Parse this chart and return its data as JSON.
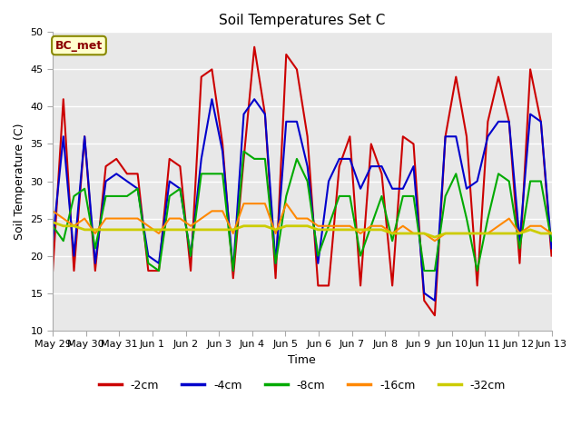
{
  "title": "Soil Temperatures Set C",
  "xlabel": "Time",
  "ylabel": "Soil Temperature (C)",
  "ylim": [
    10,
    50
  ],
  "yticks": [
    10,
    15,
    20,
    25,
    30,
    35,
    40,
    45,
    50
  ],
  "annotation": "BC_met",
  "bg_color": "#e8e8e8",
  "series": {
    "-2cm": {
      "color": "#cc0000",
      "linewidth": 1.5,
      "values": [
        18,
        41,
        18,
        36,
        18,
        32,
        33,
        31,
        31,
        18,
        18,
        33,
        32,
        18,
        44,
        45,
        35,
        17,
        33,
        48,
        39,
        17,
        47,
        45,
        36,
        16,
        16,
        32,
        36,
        16,
        35,
        31,
        16,
        36,
        35,
        14,
        12,
        36,
        44,
        36,
        16,
        38,
        44,
        38,
        19,
        45,
        38,
        20
      ]
    },
    "-4cm": {
      "color": "#0000cc",
      "linewidth": 1.5,
      "values": [
        22,
        36,
        20,
        36,
        19,
        30,
        31,
        30,
        29,
        20,
        19,
        30,
        29,
        20,
        33,
        41,
        34,
        18,
        39,
        41,
        39,
        19,
        38,
        38,
        32,
        19,
        30,
        33,
        33,
        29,
        32,
        32,
        29,
        29,
        32,
        15,
        14,
        36,
        36,
        29,
        30,
        36,
        38,
        38,
        22,
        39,
        38,
        21
      ]
    },
    "-8cm": {
      "color": "#00aa00",
      "linewidth": 1.5,
      "values": [
        24,
        22,
        28,
        29,
        21,
        28,
        28,
        28,
        29,
        19,
        18,
        28,
        29,
        20,
        31,
        31,
        31,
        18,
        34,
        33,
        33,
        19,
        28,
        33,
        30,
        20,
        24,
        28,
        28,
        20,
        24,
        28,
        22,
        28,
        28,
        18,
        18,
        28,
        31,
        25,
        18,
        25,
        31,
        30,
        21,
        30,
        30,
        22
      ]
    },
    "-16cm": {
      "color": "#ff8800",
      "linewidth": 1.5,
      "values": [
        26,
        25,
        24,
        25,
        23,
        25,
        25,
        25,
        25,
        24,
        23,
        25,
        25,
        24,
        25,
        26,
        26,
        23,
        27,
        27,
        27,
        23,
        27,
        25,
        25,
        24,
        24,
        24,
        24,
        23,
        24,
        24,
        23,
        24,
        23,
        23,
        22,
        23,
        23,
        23,
        23,
        23,
        24,
        25,
        23,
        24,
        24,
        23
      ]
    },
    "-32cm": {
      "color": "#cccc00",
      "linewidth": 2.0,
      "values": [
        24.5,
        24,
        24,
        23.5,
        23.5,
        23.5,
        23.5,
        23.5,
        23.5,
        23.5,
        23.5,
        23.5,
        23.5,
        23.5,
        23.5,
        23.5,
        23.5,
        23.5,
        24,
        24,
        24,
        23.5,
        24,
        24,
        24,
        23.5,
        23.5,
        23.5,
        23.5,
        23.5,
        23.5,
        23.5,
        23,
        23,
        23,
        23,
        22.5,
        23,
        23,
        23,
        23,
        23,
        23,
        23,
        23,
        23.5,
        23,
        23
      ]
    }
  },
  "xtick_labels": [
    "May 29",
    "May 30",
    "May 31",
    "Jun 1",
    "Jun 2",
    "Jun 3",
    "Jun 4",
    "Jun 5",
    "Jun 6",
    "Jun 7",
    "Jun 8",
    "Jun 9",
    "Jun 10",
    "Jun 11",
    "Jun 12",
    "Jun 13"
  ],
  "n_points": 48,
  "n_labels": 16
}
